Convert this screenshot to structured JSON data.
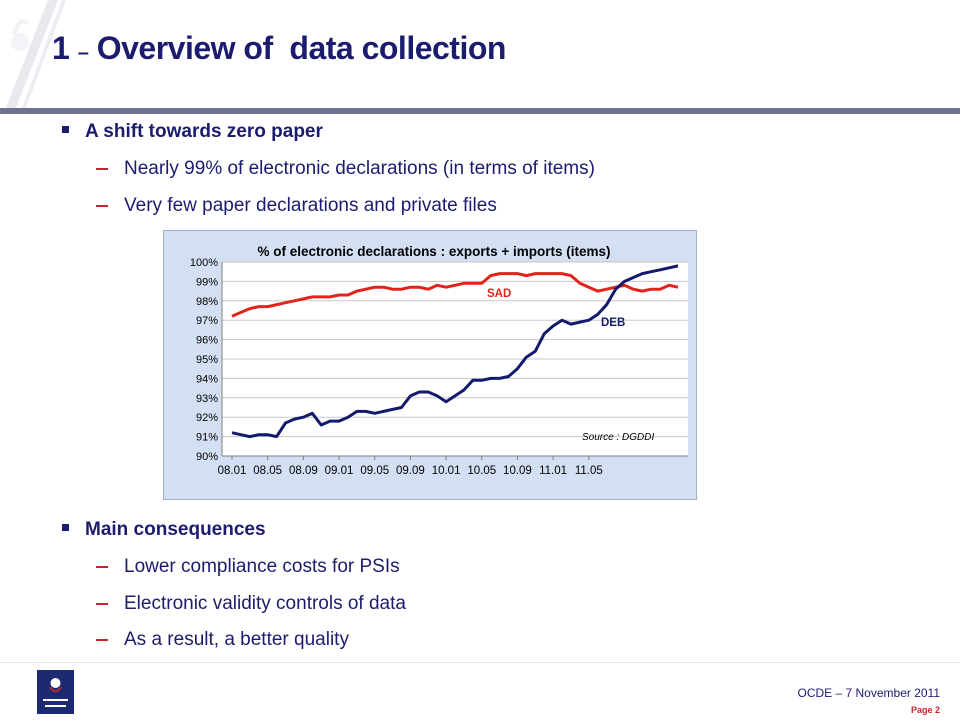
{
  "slide": {
    "title_num": "1",
    "title_dash": "–",
    "title_text": "Overview of  data collection"
  },
  "bullets": [
    {
      "text": "A shift towards zero paper",
      "subs": [
        "Nearly 99% of electronic declarations (in terms of items)",
        "Very few paper declarations and private files"
      ]
    },
    {
      "text": "Main consequences",
      "subs": [
        "Lower compliance costs for PSIs",
        "Electronic validity controls of data",
        "As a result, a better quality"
      ]
    }
  ],
  "footer": {
    "text": "OCDE – 7 November 2011",
    "page": "Page 2"
  },
  "colors": {
    "title": "#1c1c6e",
    "rule": "#6e7191",
    "sad": "#e0241b",
    "deb": "#141a6b",
    "chart_bg": "#d3dff2"
  },
  "chart_data": {
    "type": "line",
    "title": "% of electronic declarations : exports + imports (items)",
    "source_note": "Source : DGDDI",
    "x_tick_labels": [
      "08.01",
      "08.05",
      "08.09",
      "09.01",
      "09.05",
      "09.09",
      "10.01",
      "10.05",
      "10.09",
      "11.01",
      "11.05"
    ],
    "y_tick_labels": [
      "90%",
      "91%",
      "92%",
      "93%",
      "94%",
      "95%",
      "96%",
      "97%",
      "98%",
      "99%",
      "100%"
    ],
    "ylim": [
      90,
      100
    ],
    "grid": true,
    "series": [
      {
        "name": "SAD",
        "values": [
          97.2,
          97.4,
          97.6,
          97.7,
          97.7,
          97.8,
          97.9,
          98.0,
          98.1,
          98.2,
          98.2,
          98.2,
          98.3,
          98.3,
          98.5,
          98.6,
          98.7,
          98.7,
          98.6,
          98.6,
          98.7,
          98.7,
          98.6,
          98.8,
          98.7,
          98.8,
          98.9,
          98.9,
          98.9,
          99.3,
          99.4,
          99.4,
          99.4,
          99.3,
          99.4,
          99.4,
          99.4,
          99.4,
          99.3,
          98.9,
          98.7,
          98.5,
          98.6,
          98.7,
          98.8,
          98.6,
          98.5,
          98.6,
          98.6,
          98.8,
          98.7
        ]
      },
      {
        "name": "DEB",
        "values": [
          91.2,
          91.1,
          91.0,
          91.1,
          91.1,
          91.0,
          91.7,
          91.9,
          92.0,
          92.2,
          91.6,
          91.8,
          91.8,
          92.0,
          92.3,
          92.3,
          92.2,
          92.3,
          92.4,
          92.5,
          93.1,
          93.3,
          93.3,
          93.1,
          92.8,
          93.1,
          93.4,
          93.9,
          93.9,
          94.0,
          94.0,
          94.1,
          94.5,
          95.1,
          95.4,
          96.3,
          96.7,
          97.0,
          96.8,
          96.9,
          97.0,
          97.3,
          97.8,
          98.6,
          99.0,
          99.2,
          99.4,
          99.5,
          99.6,
          99.7,
          99.8
        ]
      }
    ]
  }
}
